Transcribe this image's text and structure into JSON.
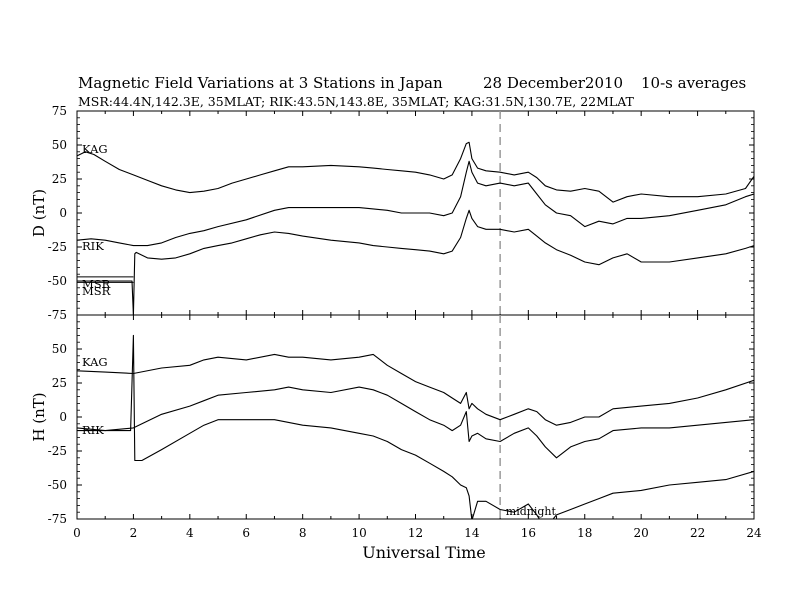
{
  "header": {
    "title": "Magnetic Field Variations at 3 Stations in Japan",
    "date": "28  December2010",
    "averaging": "10-s averages",
    "stations_line": "MSR:44.4N,142.3E, 35MLAT;  RIK:43.5N,143.8E, 35MLAT;  KAG:31.5N,130.7E, 22MLAT"
  },
  "chart_data": [
    {
      "type": "line",
      "panel": "D",
      "ylabel": "D (nT)",
      "ylim": [
        -75,
        75
      ],
      "yticks": [
        -75,
        -50,
        -25,
        0,
        25,
        50,
        75
      ],
      "xlim": [
        0,
        24
      ],
      "dashed_marker_x": 15,
      "series": [
        {
          "name": "KAG",
          "x": [
            0,
            0.3,
            0.6,
            1,
            1.5,
            2,
            2.5,
            3,
            3.5,
            4,
            4.5,
            5,
            5.5,
            6,
            6.5,
            7,
            7.5,
            8,
            9,
            10,
            10.5,
            11,
            11.5,
            12,
            12.5,
            13,
            13.3,
            13.6,
            13.8,
            13.9,
            14,
            14.2,
            14.5,
            15,
            15.5,
            16,
            16.3,
            16.6,
            17,
            17.5,
            18,
            18.5,
            19,
            19.5,
            20,
            21,
            22,
            23,
            23.7,
            24
          ],
          "y": [
            42,
            45,
            43,
            38,
            32,
            28,
            24,
            20,
            17,
            15,
            16,
            18,
            22,
            25,
            28,
            31,
            34,
            34,
            35,
            34,
            33,
            32,
            31,
            30,
            28,
            25,
            28,
            40,
            51,
            52,
            40,
            33,
            31,
            30,
            28,
            30,
            26,
            20,
            17,
            16,
            18,
            16,
            8,
            12,
            14,
            12,
            12,
            14,
            18,
            27
          ]
        },
        {
          "name": "RIK",
          "x": [
            0,
            0.5,
            1,
            1.5,
            2,
            2.5,
            3,
            3.5,
            4,
            4.5,
            5,
            6,
            7,
            7.5,
            8,
            9,
            10,
            10.5,
            11,
            11.5,
            12,
            12.5,
            13,
            13.3,
            13.6,
            13.8,
            13.9,
            14,
            14.2,
            14.5,
            15,
            15.5,
            16,
            16.3,
            16.6,
            17,
            17.5,
            18,
            18.5,
            19,
            19.5,
            20,
            21,
            22,
            23,
            23.7,
            24
          ],
          "y": [
            -20,
            -19,
            -20,
            -22,
            -24,
            -24,
            -22,
            -18,
            -15,
            -13,
            -10,
            -5,
            2,
            4,
            4,
            4,
            4,
            3,
            2,
            0,
            0,
            0,
            -2,
            0,
            12,
            30,
            38,
            30,
            22,
            20,
            22,
            20,
            22,
            14,
            6,
            0,
            -2,
            -10,
            -6,
            -8,
            -4,
            -4,
            -2,
            2,
            6,
            12,
            14
          ]
        },
        {
          "name": "MSR",
          "x": [
            0,
            1.9,
            1.95,
            2,
            2.05,
            2.1,
            2.5,
            3,
            3.5,
            4,
            4.5,
            5,
            5.5,
            6,
            6.5,
            7,
            7.5,
            8,
            9,
            10,
            10.5,
            11,
            11.5,
            12,
            12.5,
            13,
            13.3,
            13.6,
            13.8,
            13.9,
            14,
            14.2,
            14.5,
            15,
            15.5,
            16,
            16.3,
            16.6,
            17,
            17.5,
            18,
            18.5,
            19,
            19.5,
            20,
            21,
            22,
            23,
            23.7,
            24
          ],
          "y": [
            -50,
            -50,
            -50,
            -75,
            -30,
            -29,
            -33,
            -34,
            -33,
            -30,
            -26,
            -24,
            -22,
            -19,
            -16,
            -14,
            -15,
            -17,
            -20,
            -22,
            -24,
            -25,
            -26,
            -27,
            -28,
            -30,
            -28,
            -18,
            -4,
            2,
            -4,
            -10,
            -12,
            -12,
            -14,
            -12,
            -17,
            -22,
            -27,
            -31,
            -36,
            -38,
            -33,
            -30,
            -36,
            -36,
            -33,
            -30,
            -26,
            -24
          ]
        }
      ],
      "labels": [
        "KAG",
        "RIK",
        "MSR",
        "MSR"
      ]
    },
    {
      "type": "line",
      "panel": "H",
      "ylabel": "H (nT)",
      "ylim": [
        -75,
        75
      ],
      "yticks": [
        -75,
        -50,
        -25,
        0,
        25,
        50
      ],
      "xlim": [
        0,
        24
      ],
      "xticks": [
        0,
        2,
        4,
        6,
        8,
        10,
        12,
        14,
        16,
        18,
        20,
        22,
        24
      ],
      "xlabel": "Universal Time",
      "dashed_marker_x": 15,
      "annotation": "midnight",
      "series": [
        {
          "name": "KAG",
          "x": [
            0,
            1,
            2,
            3,
            4,
            4.5,
            5,
            6,
            7,
            7.5,
            8,
            9,
            10,
            10.5,
            11,
            11.5,
            12,
            12.5,
            13,
            13.3,
            13.6,
            13.8,
            13.9,
            14,
            14.2,
            14.5,
            15,
            15.5,
            16,
            16.3,
            16.6,
            17,
            17.5,
            18,
            18.5,
            19,
            20,
            21,
            22,
            23,
            24
          ],
          "y": [
            34,
            33,
            32,
            36,
            38,
            42,
            44,
            42,
            46,
            44,
            44,
            42,
            44,
            46,
            38,
            32,
            26,
            22,
            18,
            14,
            10,
            18,
            6,
            10,
            6,
            2,
            -2,
            2,
            6,
            4,
            -2,
            -6,
            -4,
            0,
            0,
            6,
            8,
            10,
            14,
            20,
            27
          ]
        },
        {
          "name": "RIK",
          "x": [
            0,
            1,
            2,
            3,
            4,
            4.5,
            5,
            6,
            7,
            7.5,
            8,
            9,
            10,
            10.5,
            11,
            11.5,
            12,
            12.5,
            13,
            13.3,
            13.6,
            13.8,
            13.9,
            14,
            14.2,
            14.5,
            15,
            15.5,
            16,
            16.3,
            16.6,
            17,
            17.5,
            18,
            18.5,
            19,
            20,
            21,
            22,
            23,
            24
          ],
          "y": [
            -8,
            -10,
            -8,
            2,
            8,
            12,
            16,
            18,
            20,
            22,
            20,
            18,
            22,
            20,
            16,
            10,
            4,
            -2,
            -6,
            -10,
            -6,
            4,
            -18,
            -14,
            -12,
            -16,
            -18,
            -12,
            -8,
            -14,
            -22,
            -30,
            -22,
            -18,
            -16,
            -10,
            -8,
            -8,
            -6,
            -4,
            -2
          ]
        },
        {
          "name": "MSR",
          "x": [
            0,
            1.9,
            2,
            2.05,
            2.3,
            3,
            4,
            4.5,
            5,
            6,
            7,
            7.5,
            8,
            9,
            10,
            10.5,
            11,
            11.5,
            12,
            12.5,
            13,
            13.3,
            13.6,
            13.8,
            13.9,
            14,
            14.2,
            14.5,
            15,
            15.5,
            16,
            16.3,
            16.6,
            17,
            17.5,
            18,
            18.5,
            19,
            20,
            21,
            22,
            23,
            24
          ],
          "y": [
            -10,
            -10,
            60,
            -32,
            -32,
            -24,
            -12,
            -6,
            -2,
            -2,
            -2,
            -4,
            -6,
            -8,
            -12,
            -14,
            -18,
            -24,
            -28,
            -34,
            -40,
            -44,
            -50,
            -52,
            -58,
            -76,
            -62,
            -62,
            -68,
            -70,
            -64,
            -72,
            -82,
            -72,
            -68,
            -64,
            -60,
            -56,
            -54,
            -50,
            -48,
            -46,
            -40
          ]
        }
      ],
      "labels": [
        "KAG",
        "RIK"
      ]
    }
  ]
}
